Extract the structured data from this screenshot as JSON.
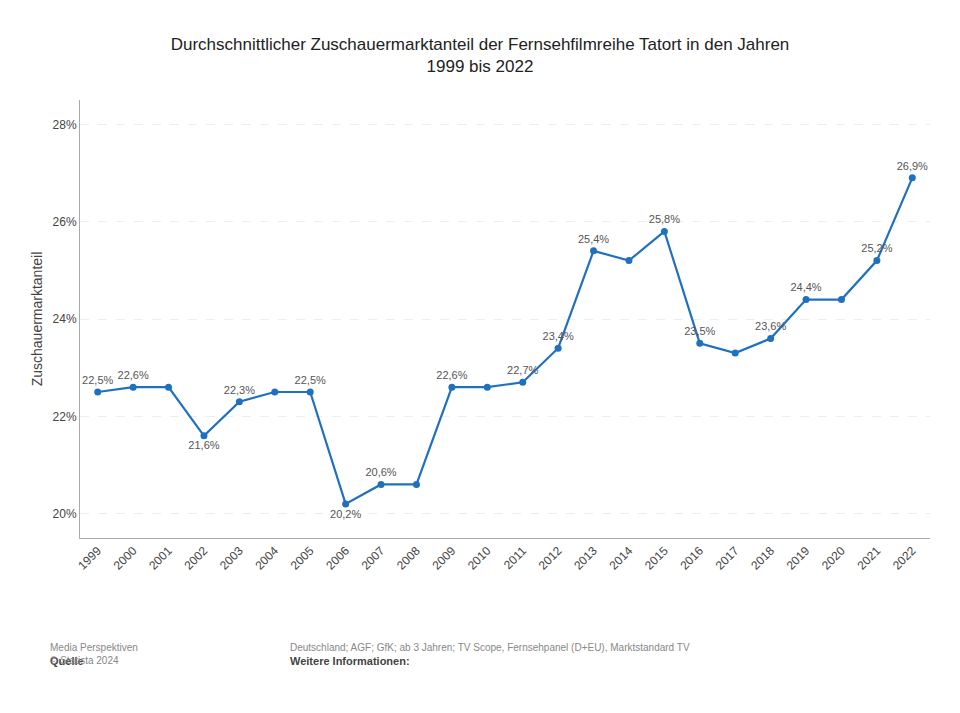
{
  "chart_data": {
    "type": "line",
    "title": "Durchschnittlicher Zuschauermarktanteil der Fernsehfilmreihe Tatort in den Jahren\n1999 bis 2022",
    "x": [
      1999,
      2000,
      2001,
      2002,
      2003,
      2004,
      2005,
      2006,
      2007,
      2008,
      2009,
      2010,
      2011,
      2012,
      2013,
      2014,
      2015,
      2016,
      2017,
      2018,
      2019,
      2020,
      2021,
      2022
    ],
    "values": [
      22.5,
      22.6,
      22.6,
      21.6,
      22.3,
      22.5,
      22.5,
      20.2,
      20.6,
      20.6,
      22.6,
      22.6,
      22.7,
      23.4,
      25.4,
      25.2,
      25.8,
      23.5,
      23.3,
      23.6,
      24.4,
      24.4,
      25.2,
      26.9
    ],
    "value_labels": [
      "22,5%",
      "22,6%",
      null,
      "21,6%",
      "22,3%",
      null,
      "22,5%",
      "20,2%",
      "20,6%",
      null,
      "22,6%",
      null,
      "22,7%",
      "23,4%",
      "25,4%",
      null,
      "25,8%",
      "23,5%",
      null,
      "23,6%",
      "24,4%",
      null,
      "25,2%",
      "26,9%"
    ],
    "color": "#2070c0",
    "marker": "circle",
    "line_style": "solid",
    "ylabel": "Zuschauermarktanteil",
    "xlim": [
      1998.5,
      2022.5
    ],
    "xticks": [
      1999,
      2000,
      2001,
      2002,
      2003,
      2004,
      2005,
      2006,
      2007,
      2008,
      2009,
      2010,
      2011,
      2012,
      2013,
      2014,
      2015,
      2016,
      2017,
      2018,
      2019,
      2020,
      2021,
      2022
    ],
    "ylim": [
      19.5,
      28.5
    ],
    "yticks": [
      {
        "value": 20,
        "label": "20%"
      },
      {
        "value": 22,
        "label": "22%"
      },
      {
        "value": 24,
        "label": "24%"
      },
      {
        "value": 26,
        "label": "26%"
      },
      {
        "value": 28,
        "label": "28%"
      }
    ],
    "grid": true,
    "annotations": [
      "Quelle",
      "Media Perspektiven\n© Statista 2024",
      "Weitere Informationen:",
      "Deutschland; AGF; GfK; ab 3 Jahren; TV Scope, Fernsehpanel (D+EU), Marktstandard TV"
    ]
  }
}
